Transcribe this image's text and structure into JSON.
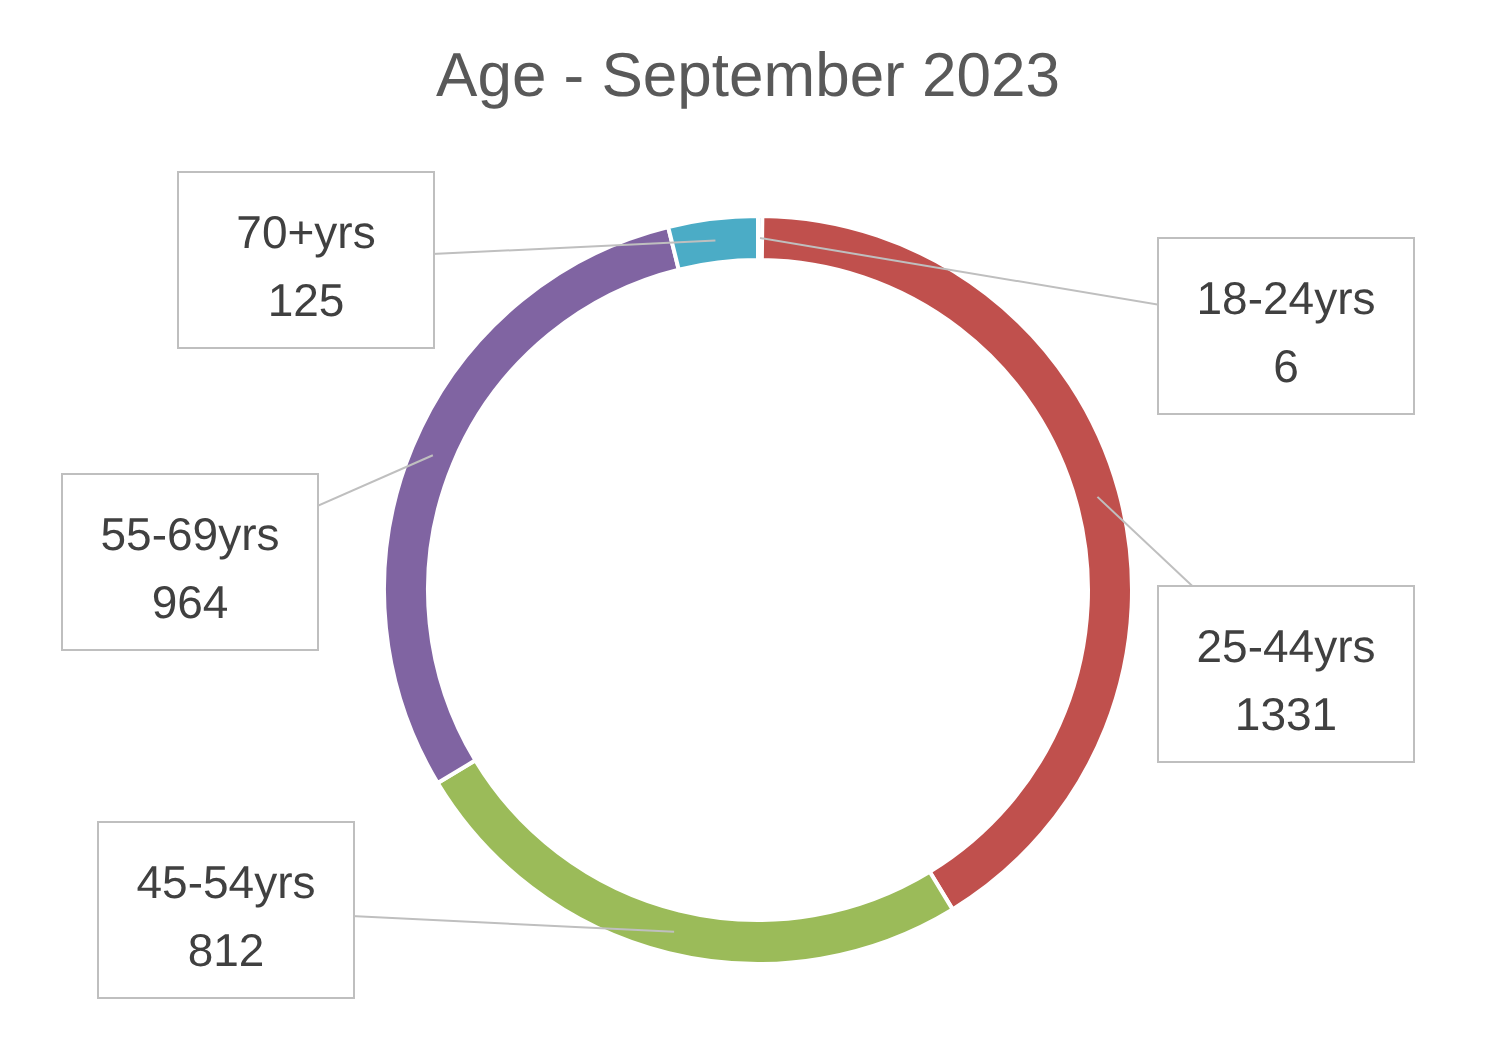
{
  "chart_data": {
    "type": "donut",
    "title": "Age - September 2023",
    "categories": [
      "18-24yrs",
      "25-44yrs",
      "45-54yrs",
      "55-69yrs",
      "70+yrs"
    ],
    "values": [
      6,
      1331,
      812,
      964,
      125
    ],
    "colors": [
      "#4f81bd",
      "#c0504d",
      "#9bbb59",
      "#8064a2",
      "#4bacc6"
    ],
    "data_labels": true
  }
}
